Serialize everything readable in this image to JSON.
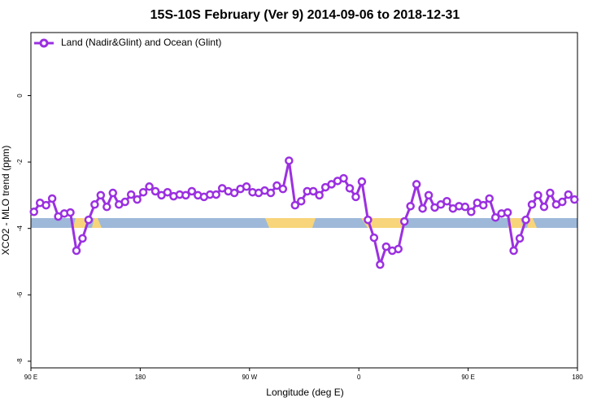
{
  "chart_data": {
    "type": "line",
    "title": "15S-10S February (Ver 9)   2014-09-06 to 2018-12-31",
    "x_label": "Longitude (deg E)",
    "y_label": "XCO2 - MLO trend (ppm)",
    "legend_position": "top-left",
    "x": [
      92.5,
      97.5,
      102.5,
      107.5,
      112.5,
      117.5,
      122.5,
      127.5,
      132.5,
      137.5,
      142.5,
      147.5,
      152.5,
      157.5,
      162.5,
      167.5,
      172.5,
      177.5,
      182.5,
      187.5,
      192.5,
      197.5,
      202.5,
      207.5,
      212.5,
      217.5,
      222.5,
      227.5,
      232.5,
      237.5,
      242.5,
      247.5,
      252.5,
      257.5,
      262.5,
      267.5,
      272.5,
      277.5,
      282.5,
      287.5,
      292.5,
      297.5,
      302.5,
      307.5,
      312.5,
      317.5,
      322.5,
      327.5,
      332.5,
      337.5,
      342.5,
      347.5,
      352.5,
      357.5,
      362.5,
      367.5,
      372.5,
      377.5,
      382.5,
      387.5,
      392.5,
      397.5,
      402.5,
      407.5,
      412.5,
      417.5,
      422.5,
      427.5,
      432.5,
      437.5,
      442.5,
      447.5,
      452.5,
      457.5,
      462.5,
      467.5,
      472.5,
      477.5,
      482.5,
      487.5,
      492.5,
      497.5,
      502.5,
      507.5,
      512.5,
      517.5,
      522.5,
      527.5,
      532.5,
      537.5
    ],
    "series": [
      {
        "name": "Land (Nadir&Glint) and Ocean (Glint)",
        "color": "#9b30e0",
        "values": [
          -3.5,
          -3.23,
          -3.3,
          -3.1,
          -3.64,
          -3.55,
          -3.52,
          -4.67,
          -4.3,
          -3.74,
          -3.28,
          -3.0,
          -3.35,
          -2.93,
          -3.28,
          -3.2,
          -2.98,
          -3.13,
          -2.91,
          -2.74,
          -2.88,
          -3.0,
          -2.91,
          -3.03,
          -2.98,
          -3.0,
          -2.88,
          -3.0,
          -3.05,
          -2.98,
          -2.98,
          -2.79,
          -2.88,
          -2.93,
          -2.81,
          -2.74,
          -2.91,
          -2.93,
          -2.86,
          -2.93,
          -2.71,
          -2.81,
          -1.96,
          -3.3,
          -3.18,
          -2.88,
          -2.88,
          -3.0,
          -2.76,
          -2.67,
          -2.57,
          -2.49,
          -2.79,
          -3.05,
          -2.59,
          -3.74,
          -4.28,
          -5.09,
          -4.55,
          -4.67,
          -4.62,
          -3.79,
          -3.33,
          -2.67,
          -3.4,
          -3.0,
          -3.37,
          -3.28,
          -3.18,
          -3.4,
          -3.33,
          -3.35,
          -3.5,
          -3.23,
          -3.3,
          -3.1,
          -3.67,
          -3.55,
          -3.52,
          -4.67,
          -4.3,
          -3.74,
          -3.28,
          -3.0,
          -3.35,
          -2.93,
          -3.28,
          -3.2,
          -2.98,
          -3.13
        ]
      }
    ],
    "xlim": [
      90,
      540
    ],
    "xticks": [
      {
        "value": 90,
        "label": "90 E"
      },
      180,
      {
        "value": 270,
        "label": "90 W"
      },
      {
        "value": 360,
        "label": "0"
      },
      {
        "value": 450,
        "label": "90 E"
      },
      {
        "value": 540,
        "label": "180"
      }
    ],
    "ylim": [
      -8.2,
      1.9
    ],
    "yticks": [
      0,
      -2,
      -4,
      -6,
      -8
    ]
  }
}
